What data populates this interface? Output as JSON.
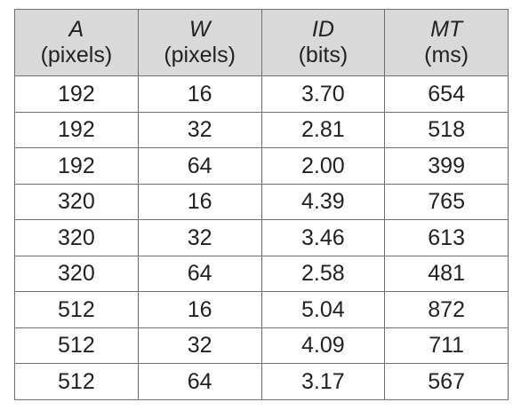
{
  "table": {
    "columns": [
      {
        "symbol": "A",
        "unit": "(pixels)"
      },
      {
        "symbol": "W",
        "unit": "(pixels)"
      },
      {
        "symbol": "ID",
        "unit": "(bits)"
      },
      {
        "symbol": "MT",
        "unit": "(ms)"
      }
    ],
    "rows": [
      [
        "192",
        "16",
        "3.70",
        "654"
      ],
      [
        "192",
        "32",
        "2.81",
        "518"
      ],
      [
        "192",
        "64",
        "2.00",
        "399"
      ],
      [
        "320",
        "16",
        "4.39",
        "765"
      ],
      [
        "320",
        "32",
        "3.46",
        "613"
      ],
      [
        "320",
        "64",
        "2.58",
        "481"
      ],
      [
        "512",
        "16",
        "5.04",
        "872"
      ],
      [
        "512",
        "32",
        "4.09",
        "711"
      ],
      [
        "512",
        "64",
        "3.17",
        "567"
      ]
    ]
  }
}
